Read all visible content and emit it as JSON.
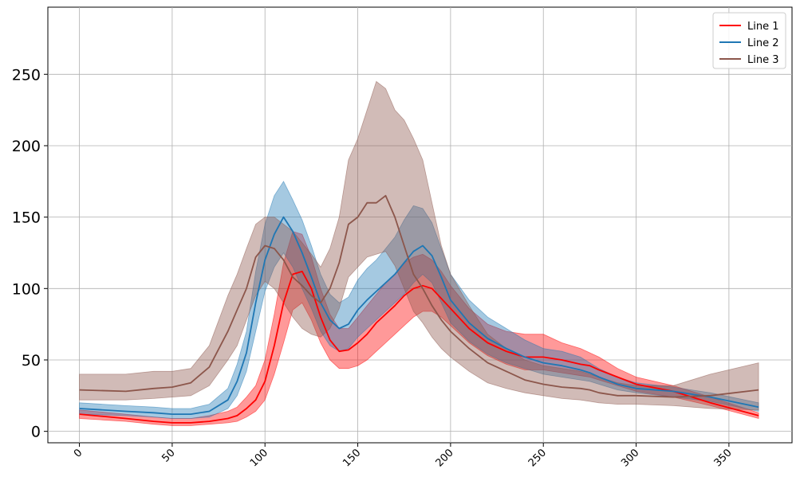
{
  "chart_data": {
    "type": "line",
    "title": "",
    "xlabel": "",
    "ylabel": "",
    "xlim": [
      -17,
      384
    ],
    "ylim": [
      -8,
      297
    ],
    "x_ticks": [
      0,
      50,
      100,
      150,
      200,
      250,
      300,
      350
    ],
    "y_ticks": [
      0,
      50,
      100,
      150,
      200,
      250
    ],
    "grid": true,
    "legend_position": "top-right",
    "x": [
      0,
      25,
      40,
      50,
      60,
      70,
      80,
      85,
      90,
      95,
      100,
      105,
      110,
      115,
      120,
      125,
      130,
      135,
      140,
      145,
      150,
      155,
      160,
      165,
      170,
      175,
      180,
      185,
      190,
      195,
      200,
      210,
      220,
      230,
      240,
      250,
      260,
      270,
      275,
      280,
      290,
      300,
      320,
      340,
      366
    ],
    "series": [
      {
        "name": "Line 1",
        "color": "#ff0000",
        "band_color": "#ff0000",
        "values": [
          12,
          9,
          7,
          6,
          6,
          7,
          9,
          11,
          16,
          22,
          35,
          60,
          90,
          110,
          112,
          100,
          80,
          64,
          56,
          57,
          62,
          68,
          76,
          82,
          88,
          95,
          100,
          102,
          100,
          93,
          86,
          72,
          62,
          56,
          52,
          52,
          50,
          47,
          46,
          43,
          38,
          33,
          28,
          20,
          11
        ],
        "lower": [
          9,
          7,
          5,
          4,
          4,
          5,
          6,
          7,
          10,
          14,
          22,
          40,
          62,
          85,
          90,
          78,
          62,
          50,
          44,
          44,
          46,
          50,
          56,
          62,
          68,
          74,
          80,
          84,
          84,
          80,
          74,
          62,
          53,
          47,
          43,
          43,
          41,
          39,
          38,
          36,
          32,
          28,
          24,
          18,
          9
        ],
        "upper": [
          15,
          12,
          10,
          9,
          9,
          11,
          14,
          17,
          24,
          32,
          50,
          82,
          118,
          140,
          138,
          122,
          100,
          82,
          72,
          72,
          80,
          88,
          96,
          104,
          110,
          118,
          122,
          124,
          120,
          112,
          102,
          86,
          75,
          70,
          68,
          68,
          62,
          58,
          55,
          52,
          44,
          38,
          32,
          24,
          13
        ]
      },
      {
        "name": "Line 2",
        "color": "#1f77b4",
        "band_color": "#1f77b4",
        "values": [
          16,
          14,
          13,
          12,
          12,
          14,
          22,
          35,
          55,
          90,
          120,
          138,
          150,
          140,
          125,
          108,
          90,
          78,
          72,
          75,
          85,
          92,
          98,
          104,
          110,
          118,
          126,
          130,
          123,
          108,
          92,
          76,
          65,
          58,
          52,
          48,
          46,
          43,
          41,
          38,
          33,
          30,
          28,
          24,
          17
        ],
        "lower": [
          12,
          11,
          10,
          9,
          9,
          10,
          16,
          25,
          42,
          70,
          98,
          115,
          125,
          115,
          100,
          86,
          70,
          60,
          56,
          58,
          66,
          72,
          78,
          84,
          90,
          96,
          104,
          110,
          104,
          90,
          76,
          63,
          54,
          48,
          44,
          40,
          38,
          36,
          35,
          33,
          29,
          27,
          24,
          21,
          14
        ],
        "upper": [
          20,
          18,
          17,
          16,
          16,
          19,
          30,
          47,
          70,
          112,
          145,
          165,
          175,
          162,
          148,
          130,
          110,
          96,
          90,
          94,
          106,
          114,
          120,
          128,
          136,
          148,
          158,
          156,
          146,
          128,
          110,
          92,
          80,
          72,
          64,
          58,
          56,
          52,
          48,
          44,
          38,
          34,
          31,
          27,
          20
        ]
      },
      {
        "name": "Line 3",
        "color": "#8c564b",
        "band_color": "#8c564b",
        "values": [
          29,
          28,
          30,
          31,
          34,
          45,
          70,
          85,
          100,
          122,
          130,
          128,
          120,
          108,
          102,
          95,
          90,
          100,
          118,
          145,
          150,
          160,
          160,
          165,
          150,
          130,
          110,
          100,
          88,
          78,
          70,
          58,
          48,
          42,
          36,
          33,
          31,
          30,
          29,
          27,
          25,
          25,
          24,
          25,
          29
        ],
        "lower": [
          22,
          22,
          23,
          24,
          25,
          32,
          50,
          60,
          78,
          95,
          105,
          100,
          90,
          80,
          72,
          68,
          66,
          72,
          86,
          108,
          115,
          122,
          124,
          126,
          116,
          100,
          84,
          76,
          66,
          58,
          52,
          42,
          34,
          30,
          27,
          25,
          23,
          22,
          21,
          20,
          19,
          19,
          18,
          16,
          15
        ],
        "upper": [
          40,
          40,
          42,
          42,
          44,
          60,
          95,
          110,
          128,
          145,
          150,
          150,
          145,
          140,
          132,
          124,
          115,
          128,
          150,
          190,
          205,
          225,
          245,
          240,
          225,
          218,
          205,
          190,
          160,
          130,
          110,
          88,
          68,
          58,
          50,
          46,
          44,
          42,
          40,
          38,
          34,
          32,
          32,
          40,
          48
        ]
      }
    ]
  }
}
